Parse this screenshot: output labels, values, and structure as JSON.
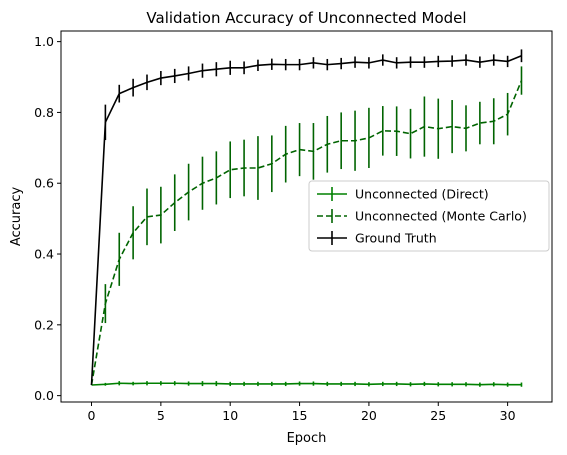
{
  "chart_data": {
    "type": "line",
    "title": "Validation Accuracy of Unconnected Model",
    "xlabel": "Epoch",
    "ylabel": "Accuracy",
    "xlim": [
      -2.2,
      33.2
    ],
    "ylim": [
      -0.018,
      1.03
    ],
    "xticks": [
      0,
      5,
      10,
      15,
      20,
      25,
      30
    ],
    "yticks": [
      0.0,
      0.2,
      0.4,
      0.6,
      0.8,
      1.0
    ],
    "xtick_labels": [
      "0",
      "5",
      "10",
      "15",
      "20",
      "25",
      "30"
    ],
    "ytick_labels": [
      "0.0",
      "0.2",
      "0.4",
      "0.6",
      "0.8",
      "1.0"
    ],
    "grid": false,
    "legend_position": "center-right",
    "x": [
      0,
      1,
      2,
      3,
      4,
      5,
      6,
      7,
      8,
      9,
      10,
      11,
      12,
      13,
      14,
      15,
      16,
      17,
      18,
      19,
      20,
      21,
      22,
      23,
      24,
      25,
      26,
      27,
      28,
      29,
      30,
      31
    ],
    "series": [
      {
        "name": "Unconnected (Direct)",
        "style": "solid",
        "color": "#008000",
        "values": [
          0.03,
          0.032,
          0.035,
          0.034,
          0.035,
          0.035,
          0.035,
          0.034,
          0.034,
          0.034,
          0.033,
          0.033,
          0.033,
          0.033,
          0.033,
          0.034,
          0.034,
          0.033,
          0.033,
          0.033,
          0.032,
          0.033,
          0.033,
          0.032,
          0.033,
          0.032,
          0.032,
          0.032,
          0.031,
          0.032,
          0.031,
          0.031
        ],
        "errors": [
          0.0,
          0.004,
          0.006,
          0.005,
          0.006,
          0.006,
          0.006,
          0.006,
          0.007,
          0.007,
          0.006,
          0.006,
          0.006,
          0.006,
          0.006,
          0.006,
          0.006,
          0.006,
          0.006,
          0.006,
          0.006,
          0.006,
          0.006,
          0.006,
          0.006,
          0.006,
          0.006,
          0.006,
          0.006,
          0.006,
          0.006,
          0.006
        ]
      },
      {
        "name": "Unconnected (Monte Carlo)",
        "style": "dashed",
        "color": "#006400",
        "values": [
          0.03,
          0.26,
          0.385,
          0.46,
          0.505,
          0.51,
          0.545,
          0.575,
          0.6,
          0.615,
          0.638,
          0.643,
          0.643,
          0.655,
          0.682,
          0.695,
          0.69,
          0.71,
          0.72,
          0.72,
          0.728,
          0.748,
          0.747,
          0.74,
          0.76,
          0.754,
          0.76,
          0.755,
          0.77,
          0.775,
          0.795,
          0.89
        ],
        "errors": [
          0.0,
          0.055,
          0.075,
          0.075,
          0.08,
          0.08,
          0.08,
          0.08,
          0.075,
          0.075,
          0.08,
          0.08,
          0.09,
          0.08,
          0.08,
          0.075,
          0.08,
          0.08,
          0.08,
          0.085,
          0.085,
          0.07,
          0.07,
          0.07,
          0.085,
          0.085,
          0.075,
          0.065,
          0.06,
          0.065,
          0.06,
          0.04
        ]
      },
      {
        "name": "Ground Truth",
        "style": "solid",
        "color": "#000000",
        "values": [
          0.03,
          0.772,
          0.853,
          0.87,
          0.885,
          0.897,
          0.903,
          0.91,
          0.918,
          0.922,
          0.926,
          0.926,
          0.933,
          0.936,
          0.935,
          0.935,
          0.94,
          0.935,
          0.938,
          0.942,
          0.94,
          0.948,
          0.94,
          0.942,
          0.942,
          0.944,
          0.945,
          0.948,
          0.942,
          0.948,
          0.944,
          0.96
        ],
        "errors": [
          0.0,
          0.05,
          0.025,
          0.025,
          0.022,
          0.02,
          0.02,
          0.02,
          0.02,
          0.02,
          0.02,
          0.018,
          0.016,
          0.016,
          0.016,
          0.016,
          0.016,
          0.016,
          0.016,
          0.016,
          0.016,
          0.016,
          0.016,
          0.016,
          0.016,
          0.016,
          0.016,
          0.016,
          0.016,
          0.016,
          0.016,
          0.018
        ]
      }
    ]
  }
}
